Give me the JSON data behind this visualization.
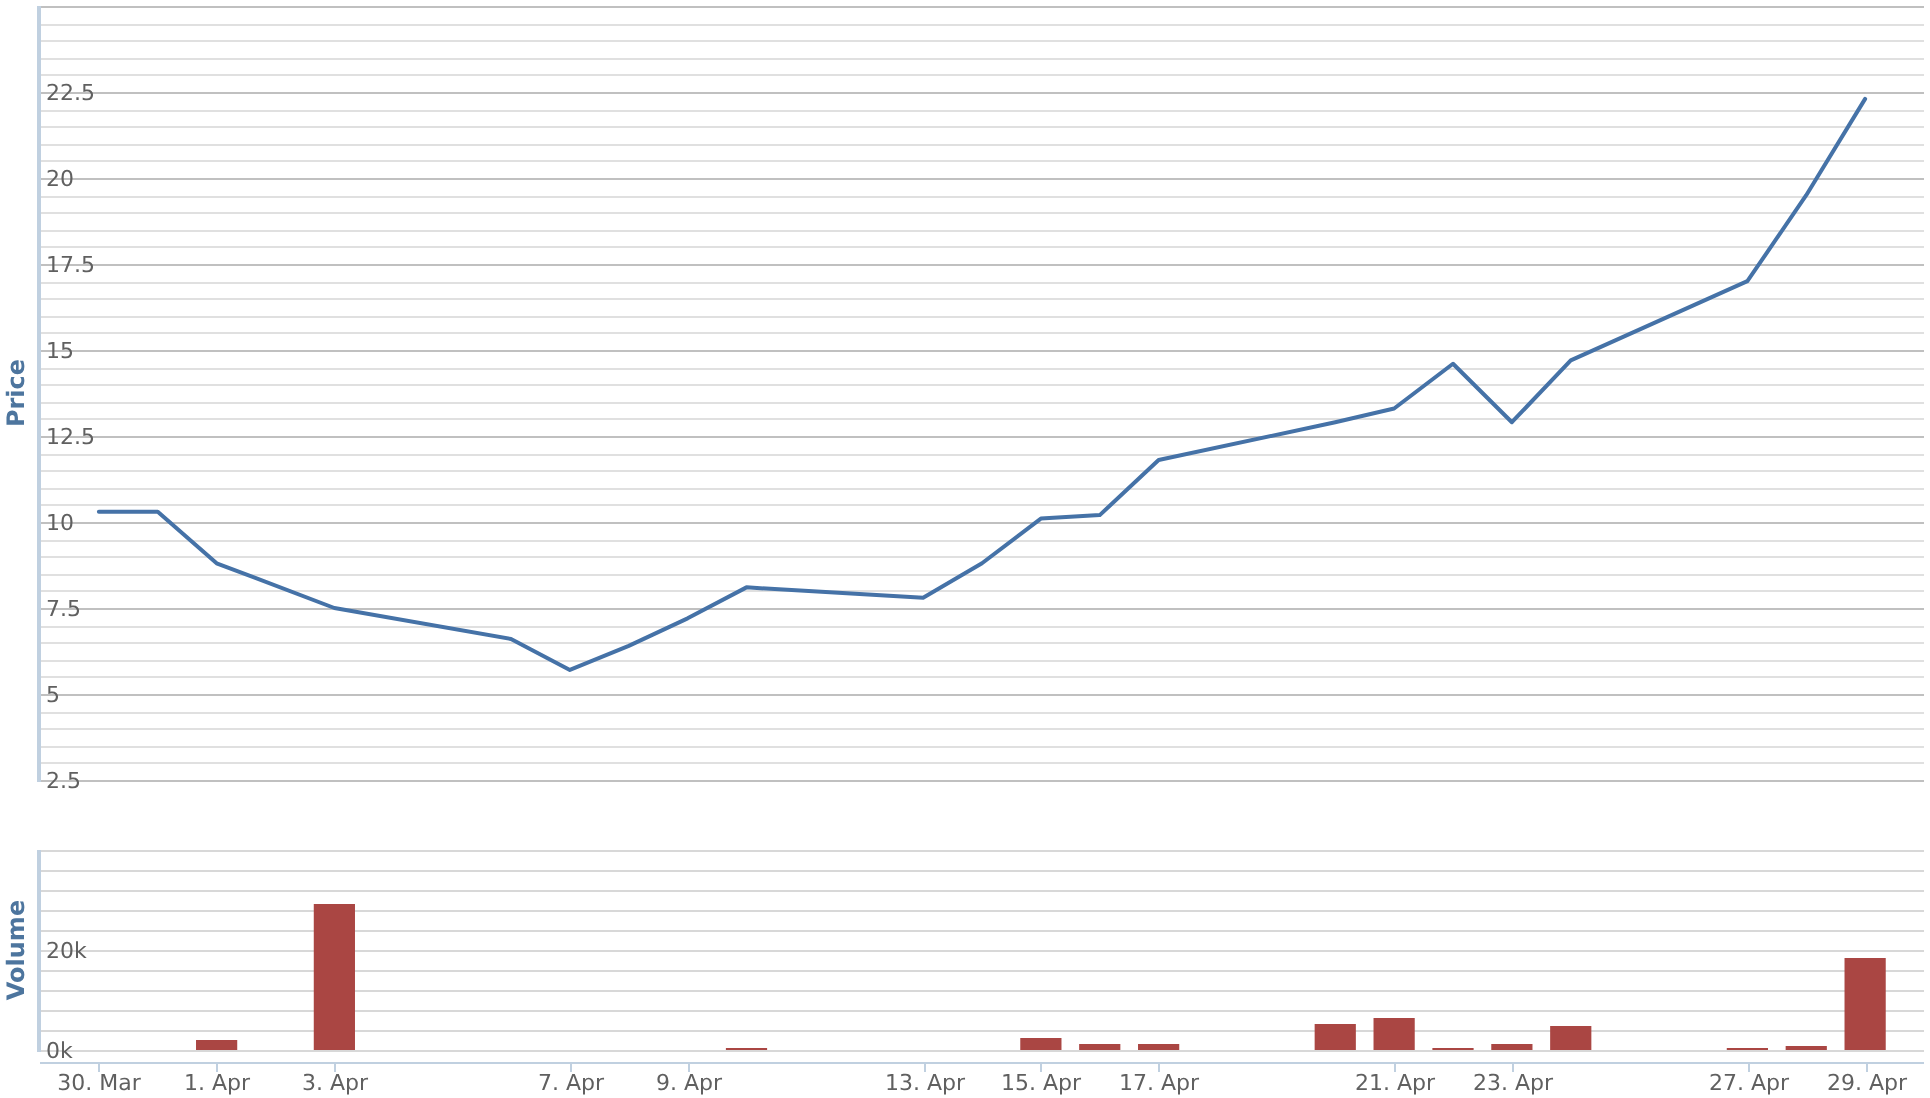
{
  "chart_data": [
    {
      "type": "line",
      "ylabel": "Price",
      "x": [
        "--03-30",
        "--03-31",
        "--04-01",
        "--04-03",
        "--04-06",
        "--04-07",
        "--04-08",
        "--04-09",
        "--04-10",
        "--04-13",
        "--04-14",
        "--04-15",
        "--04-16",
        "--04-17",
        "--04-20",
        "--04-21",
        "--04-22",
        "--04-23",
        "--04-24",
        "--04-27",
        "--04-28",
        "--04-29"
      ],
      "values": [
        10.3,
        10.3,
        8.8,
        7.5,
        6.6,
        5.7,
        6.4,
        7.2,
        8.1,
        7.8,
        8.8,
        10.1,
        10.2,
        11.8,
        12.9,
        13.3,
        14.6,
        12.9,
        14.7,
        17.0,
        19.5,
        22.3
      ],
      "color": "#4572a7",
      "xlim": [
        "--03-29",
        "--04-30"
      ],
      "ylim": [
        2.5,
        25
      ],
      "yticks": [
        2.5,
        {
          "value": 3,
          "label": null
        },
        {
          "value": 3.5,
          "label": null
        },
        {
          "value": 4,
          "label": null
        },
        {
          "value": 4.5,
          "label": null
        },
        5,
        {
          "value": 5.5,
          "label": null
        },
        {
          "value": 6,
          "label": null
        },
        {
          "value": 6.5,
          "label": null
        },
        {
          "value": 7,
          "label": null
        },
        7.5,
        {
          "value": 8,
          "label": null
        },
        {
          "value": 8.5,
          "label": null
        },
        {
          "value": 9,
          "label": null
        },
        {
          "value": 9.5,
          "label": null
        },
        10,
        {
          "value": 10.5,
          "label": null
        },
        {
          "value": 11,
          "label": null
        },
        {
          "value": 11.5,
          "label": null
        },
        {
          "value": 12,
          "label": null
        },
        12.5,
        {
          "value": 13,
          "label": null
        },
        {
          "value": 13.5,
          "label": null
        },
        {
          "value": 14,
          "label": null
        },
        {
          "value": 14.5,
          "label": null
        },
        15,
        {
          "value": 15.5,
          "label": null
        },
        {
          "value": 16,
          "label": null
        },
        {
          "value": 16.5,
          "label": null
        },
        {
          "value": 17,
          "label": null
        },
        17.5,
        {
          "value": 18,
          "label": null
        },
        {
          "value": 18.5,
          "label": null
        },
        {
          "value": 19,
          "label": null
        },
        {
          "value": 19.5,
          "label": null
        },
        20,
        {
          "value": 20.5,
          "label": null
        },
        {
          "value": 21,
          "label": null
        },
        {
          "value": 21.5,
          "label": null
        },
        {
          "value": 22,
          "label": null
        },
        22.5,
        {
          "value": 23,
          "label": null
        },
        {
          "value": 23.5,
          "label": null
        },
        {
          "value": 24,
          "label": null
        },
        {
          "value": 24.5,
          "label": null
        },
        {
          "value": 25,
          "label": null
        }
      ],
      "grid": "y",
      "tick_labels": "y"
    },
    {
      "type": "bar",
      "ylabel": "Volume",
      "x": [
        "--04-01",
        "--04-03",
        "--04-10",
        "--04-15",
        "--04-16",
        "--04-17",
        "--04-20",
        "--04-21",
        "--04-22",
        "--04-23",
        "--04-24",
        "--04-27",
        "--04-28",
        "--04-29"
      ],
      "values": [
        2000,
        29200,
        400,
        2400,
        1200,
        1200,
        5200,
        6400,
        400,
        1200,
        4800,
        400,
        800,
        18400
      ],
      "color": "#aa4643",
      "xlim": [
        "--03-29",
        "--04-30"
      ],
      "xticks": [
        {
          "value": "--03-30",
          "label": "30. Mar"
        },
        {
          "value": "--04-01",
          "label": "1. Apr"
        },
        {
          "value": "--04-03",
          "label": "3. Apr"
        },
        {
          "value": "--04-07",
          "label": "7. Apr"
        },
        {
          "value": "--04-09",
          "label": "9. Apr"
        },
        {
          "value": "--04-13",
          "label": "13. Apr"
        },
        {
          "value": "--04-15",
          "label": "15. Apr"
        },
        {
          "value": "--04-17",
          "label": "17. Apr"
        },
        {
          "value": "--04-21",
          "label": "21. Apr"
        },
        {
          "value": "--04-23",
          "label": "23. Apr"
        },
        {
          "value": "--04-27",
          "label": "27. Apr"
        },
        {
          "value": "--04-29",
          "label": "29. Apr"
        }
      ],
      "ylim": [
        0,
        40000
      ],
      "yticks": [
        {
          "value": 0,
          "label": "0k"
        },
        {
          "value": 4000,
          "label": null
        },
        {
          "value": 8000,
          "label": null
        },
        {
          "value": 12000,
          "label": null
        },
        {
          "value": 16000,
          "label": null
        },
        {
          "value": 20000,
          "label": "20k"
        },
        {
          "value": 24000,
          "label": null
        },
        {
          "value": 28000,
          "label": null
        },
        {
          "value": 32000,
          "label": null
        },
        {
          "value": 36000,
          "label": null
        },
        {
          "value": 40000,
          "label": null
        }
      ],
      "grid": "y"
    }
  ]
}
